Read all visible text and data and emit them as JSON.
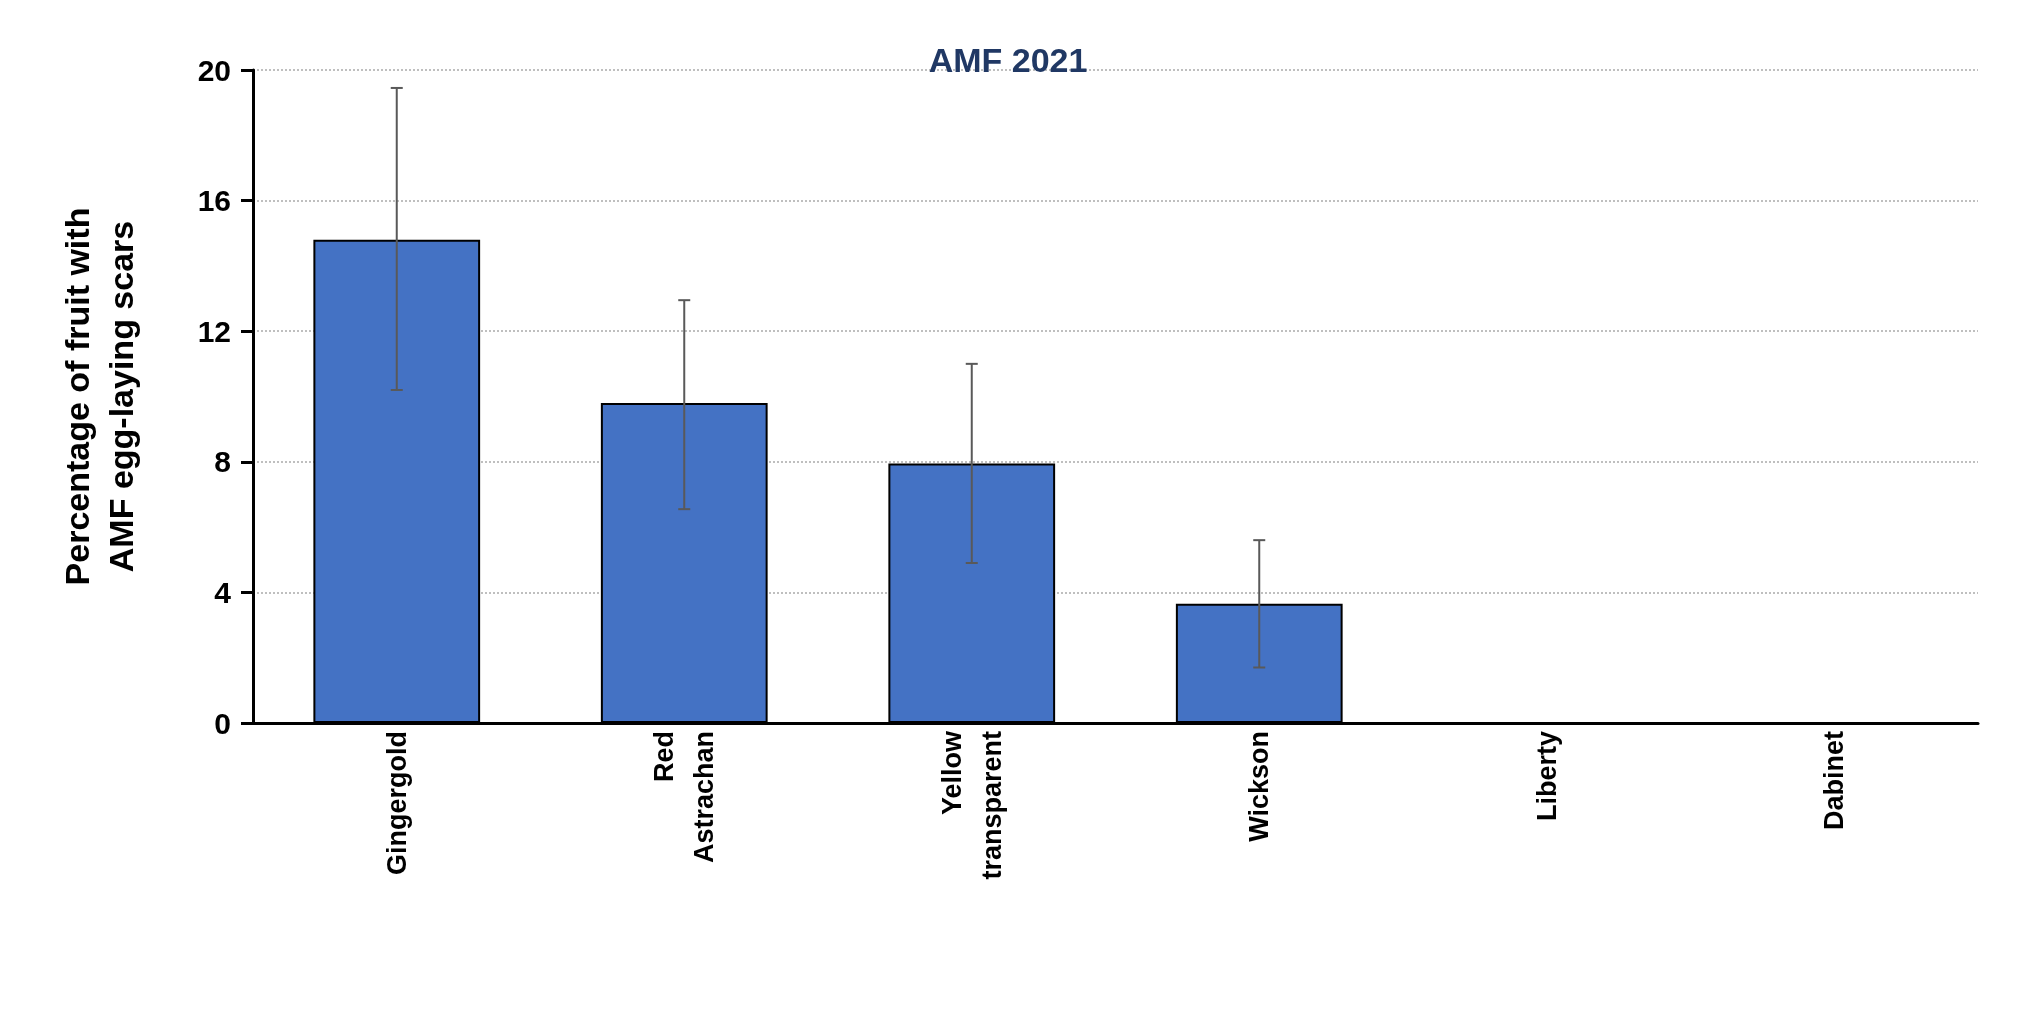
{
  "chart_data": {
    "type": "bar",
    "title": "AMF 2021",
    "ylabel": "Percentage of fruit with\nAMF egg-laying scars",
    "categories": [
      "Gingergold",
      "Red\nAstrachan",
      "Yellow\ntransparent",
      "Wickson",
      "Liberty",
      "Dabinet"
    ],
    "values": [
      14.8,
      9.8,
      7.95,
      3.65,
      0,
      0
    ],
    "errors": [
      [
        10.2,
        19.45
      ],
      [
        6.55,
        12.95
      ],
      [
        4.9,
        11.0
      ],
      [
        1.7,
        5.6
      ],
      null,
      null
    ],
    "color": "#4472c4",
    "ylim": [
      0,
      20
    ],
    "yticks": [
      0,
      4,
      8,
      12,
      16,
      20
    ],
    "grid": "y"
  }
}
